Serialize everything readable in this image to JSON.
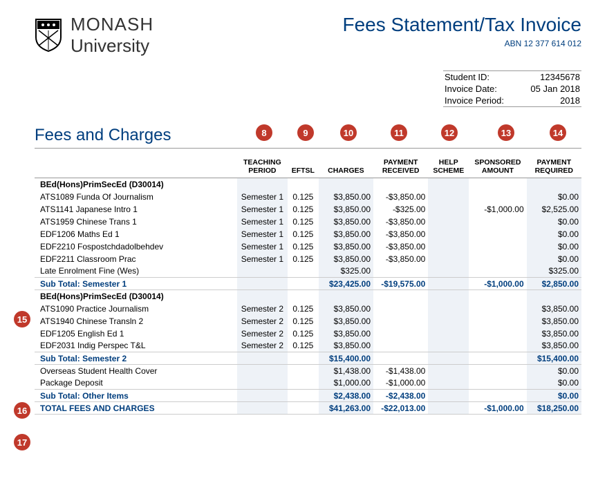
{
  "brand": {
    "name1": "MONASH",
    "name2": "University"
  },
  "doc": {
    "title": "Fees Statement/Tax Invoice",
    "abn": "ABN 12 377 614 012"
  },
  "meta": {
    "student_id_label": "Student ID:",
    "student_id": "12345678",
    "invoice_date_label": "Invoice Date:",
    "invoice_date": "05 Jan 2018",
    "invoice_period_label": "Invoice Period:",
    "invoice_period": "2018"
  },
  "section_title": "Fees and Charges",
  "columns": {
    "desc": "",
    "tp": "TEACHING PERIOD",
    "eftsl": "EFTSL",
    "charges": "CHARGES",
    "pay": "PAYMENT RECEIVED",
    "help": "HELP SCHEME",
    "spon": "SPONSORED AMOUNT",
    "req": "PAYMENT REQUIRED"
  },
  "badges_top": {
    "8": "8",
    "9": "9",
    "10": "10",
    "11": "11",
    "12": "12",
    "13": "13",
    "14": "14"
  },
  "badges_side": {
    "15": "15",
    "16": "16",
    "17": "17"
  },
  "group1": {
    "head": "BEd(Hons)PrimSecEd (D30014)",
    "rows": [
      {
        "desc": "ATS1089 Funda Of Journalism",
        "tp": "Semester 1",
        "eftsl": "0.125",
        "charges": "$3,850.00",
        "pay": "-$3,850.00",
        "help": "",
        "spon": "",
        "req": "$0.00"
      },
      {
        "desc": "ATS1141 Japanese Intro 1",
        "tp": "Semester 1",
        "eftsl": "0.125",
        "charges": "$3,850.00",
        "pay": "-$325.00",
        "help": "",
        "spon": "-$1,000.00",
        "req": "$2,525.00"
      },
      {
        "desc": "ATS1959 Chinese Trans 1",
        "tp": "Semester 1",
        "eftsl": "0.125",
        "charges": "$3,850.00",
        "pay": "-$3,850.00",
        "help": "",
        "spon": "",
        "req": "$0.00"
      },
      {
        "desc": "EDF1206 Maths Ed 1",
        "tp": "Semester 1",
        "eftsl": "0.125",
        "charges": "$3,850.00",
        "pay": "-$3,850.00",
        "help": "",
        "spon": "",
        "req": "$0.00"
      },
      {
        "desc": "EDF2210 Fospostchdadolbehdev",
        "tp": "Semester 1",
        "eftsl": "0.125",
        "charges": "$3,850.00",
        "pay": "-$3,850.00",
        "help": "",
        "spon": "",
        "req": "$0.00"
      },
      {
        "desc": "EDF2211 Classroom Prac",
        "tp": "Semester 1",
        "eftsl": "0.125",
        "charges": "$3,850.00",
        "pay": "-$3,850.00",
        "help": "",
        "spon": "",
        "req": "$0.00"
      },
      {
        "desc": "Late Enrolment Fine (Wes)",
        "tp": "",
        "eftsl": "",
        "charges": "$325.00",
        "pay": "",
        "help": "",
        "spon": "",
        "req": "$325.00"
      }
    ],
    "subtotal": {
      "label": "Sub Total: Semester 1",
      "charges": "$23,425.00",
      "pay": "-$19,575.00",
      "help": "",
      "spon": "-$1,000.00",
      "req": "$2,850.00"
    }
  },
  "group2": {
    "head": "BEd(Hons)PrimSecEd (D30014)",
    "rows": [
      {
        "desc": "ATS1090 Practice Journalism",
        "tp": "Semester 2",
        "eftsl": "0.125",
        "charges": "$3,850.00",
        "pay": "",
        "help": "",
        "spon": "",
        "req": "$3,850.00"
      },
      {
        "desc": "ATS1940 Chinese Transln 2",
        "tp": "Semester 2",
        "eftsl": "0.125",
        "charges": "$3,850.00",
        "pay": "",
        "help": "",
        "spon": "",
        "req": "$3,850.00"
      },
      {
        "desc": "EDF1205 English Ed 1",
        "tp": "Semester 2",
        "eftsl": "0.125",
        "charges": "$3,850.00",
        "pay": "",
        "help": "",
        "spon": "",
        "req": "$3,850.00"
      },
      {
        "desc": "EDF2031 Indig Perspec T&L",
        "tp": "Semester 2",
        "eftsl": "0.125",
        "charges": "$3,850.00",
        "pay": "",
        "help": "",
        "spon": "",
        "req": "$3,850.00"
      }
    ],
    "subtotal": {
      "label": "Sub Total: Semester 2",
      "charges": "$15,400.00",
      "pay": "",
      "help": "",
      "spon": "",
      "req": "$15,400.00"
    }
  },
  "group3": {
    "rows": [
      {
        "desc": "Overseas Student Health Cover",
        "tp": "",
        "eftsl": "",
        "charges": "$1,438.00",
        "pay": "-$1,438.00",
        "help": "",
        "spon": "",
        "req": "$0.00"
      },
      {
        "desc": "Package Deposit",
        "tp": "",
        "eftsl": "",
        "charges": "$1,000.00",
        "pay": "-$1,000.00",
        "help": "",
        "spon": "",
        "req": "$0.00"
      }
    ],
    "subtotal": {
      "label": "Sub Total: Other Items",
      "charges": "$2,438.00",
      "pay": "-$2,438.00",
      "help": "",
      "spon": "",
      "req": "$0.00"
    }
  },
  "grand": {
    "label": "TOTAL FEES AND CHARGES",
    "charges": "$41,263.00",
    "pay": "-$22,013.00",
    "help": "",
    "spon": "-$1,000.00",
    "req": "$18,250.00"
  },
  "colors": {
    "brand_blue": "#003e7e",
    "badge_red": "#c0392b",
    "band": "#eef2f7"
  }
}
